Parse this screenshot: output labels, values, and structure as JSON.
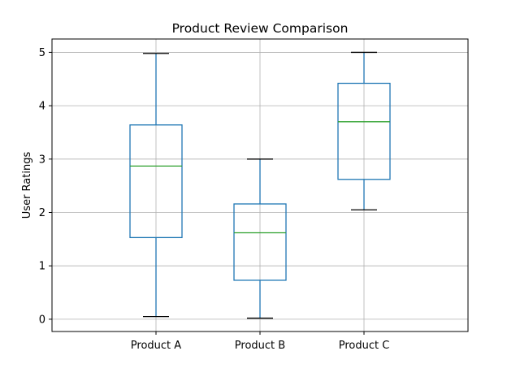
{
  "chart_data": {
    "type": "box",
    "title": "Product Review Comparison",
    "xlabel": "",
    "ylabel": "User Ratings",
    "ylim": [
      -0.23,
      5.25
    ],
    "yticks": [
      0,
      1,
      2,
      3,
      4,
      5
    ],
    "grid": true,
    "categories": [
      "Product A",
      "Product B",
      "Product C"
    ],
    "boxes": [
      {
        "whisker_low": 0.05,
        "q1": 1.53,
        "median": 2.87,
        "q3": 3.64,
        "whisker_high": 4.98
      },
      {
        "whisker_low": 0.02,
        "q1": 0.73,
        "median": 1.62,
        "q3": 2.16,
        "whisker_high": 3.0
      },
      {
        "whisker_low": 2.05,
        "q1": 2.62,
        "median": 3.7,
        "q3": 4.42,
        "whisker_high": 5.0
      }
    ],
    "colors": {
      "box": "#1f77b4",
      "median": "#2ca02c",
      "cap": "#000000",
      "grid": "#b0b0b0"
    }
  }
}
